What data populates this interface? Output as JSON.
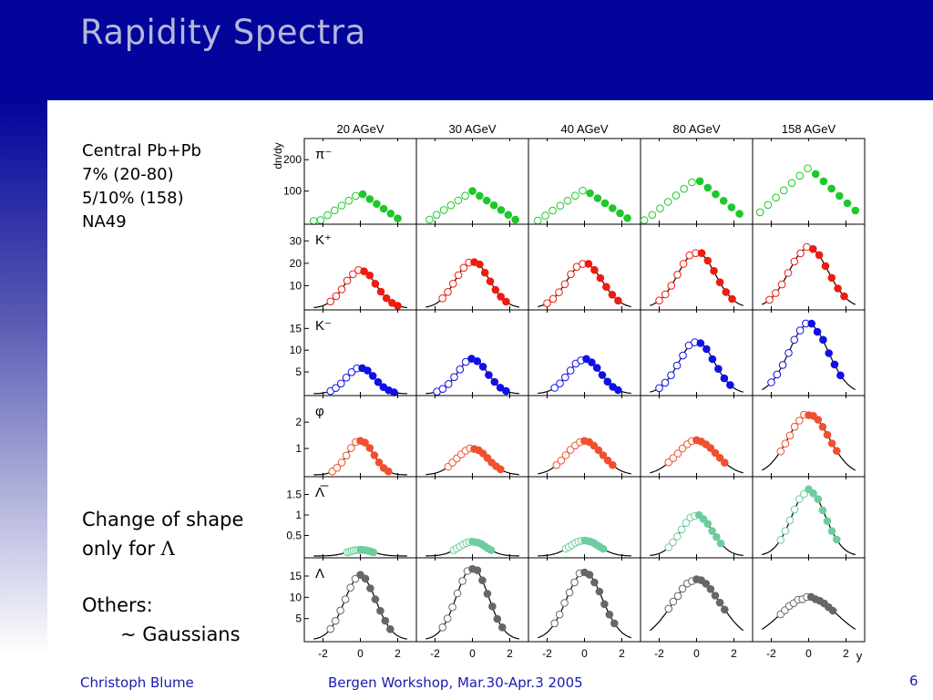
{
  "slide": {
    "title": "Rapidity Spectra",
    "info_lines": [
      "Central Pb+Pb",
      "7% (20-80)",
      "5/10% (158)",
      "",
      "NA49"
    ],
    "shape_line1": "Change of shape",
    "shape_line2_prefix": "only for ",
    "shape_line2_symbol": "Λ",
    "others_line1": "Others:",
    "others_line2": "~ Gaussians",
    "footer_author": "Christoph Blume",
    "footer_event": "Bergen Workshop, Mar.30-Apr.3 2005",
    "page_number": "6",
    "colors": {
      "header": "#03049a",
      "title": "#b4b7dd",
      "footer": "#1a1ab0"
    }
  },
  "chart_data": {
    "type": "scatter",
    "columns": [
      "20 AGeV",
      "30 AGeV",
      "40 AGeV",
      "80 AGeV",
      "158 AGeV"
    ],
    "x_ticks": [
      -2,
      0,
      2
    ],
    "xlim": [
      -3,
      3
    ],
    "xlabel": "y",
    "ylabel": "dn/dy",
    "legend": "none",
    "rows": [
      {
        "particle": "π⁻",
        "color": "#1ec82b",
        "ylim": [
          0,
          250
        ],
        "yticks": [
          100,
          200
        ],
        "fit_curve": false,
        "widths": [
          1.05,
          1.15,
          1.2,
          1.3,
          1.45
        ],
        "peaks": [
          95,
          100,
          105,
          140,
          175
        ],
        "ranges": [
          [
            -2.5,
            2.0
          ],
          [
            -2.3,
            2.3
          ],
          [
            -2.5,
            2.3
          ],
          [
            -2.8,
            2.3
          ],
          [
            -2.6,
            2.5
          ]
        ]
      },
      {
        "particle": "K⁺",
        "color": "#ee1c10",
        "ylim": [
          0,
          35
        ],
        "yticks": [
          10,
          20,
          30
        ],
        "fit_curve": true,
        "widths": [
          0.85,
          0.9,
          0.95,
          1.0,
          1.05
        ],
        "peaks": [
          17,
          21,
          20,
          25,
          27
        ],
        "ranges": [
          [
            -1.6,
            2.0
          ],
          [
            -1.6,
            1.8
          ],
          [
            -2.0,
            1.8
          ],
          [
            -2.0,
            1.9
          ],
          [
            -2.1,
            1.9
          ]
        ]
      },
      {
        "particle": "K⁻",
        "color": "#1010e6",
        "ylim": [
          0,
          18
        ],
        "yticks": [
          5,
          10,
          15
        ],
        "fit_curve": true,
        "widths": [
          0.75,
          0.8,
          0.85,
          0.95,
          1.05
        ],
        "peaks": [
          6,
          8,
          8,
          12,
          16
        ],
        "ranges": [
          [
            -1.6,
            1.8
          ],
          [
            -1.9,
            1.8
          ],
          [
            -1.6,
            1.8
          ],
          [
            -2.0,
            1.8
          ],
          [
            -2.0,
            1.7
          ]
        ]
      },
      {
        "particle": "φ",
        "color": "#f05030",
        "ylim": [
          0,
          2.8
        ],
        "yticks": [
          1,
          2
        ],
        "fit_curve": true,
        "widths": [
          0.7,
          0.85,
          0.95,
          1.05,
          1.1
        ],
        "peaks": [
          1.3,
          1.0,
          1.3,
          1.3,
          2.3
        ],
        "ranges": [
          [
            -1.5,
            1.5
          ],
          [
            -1.3,
            1.5
          ],
          [
            -1.5,
            1.5
          ],
          [
            -1.5,
            1.5
          ],
          [
            -1.5,
            1.5
          ]
        ]
      },
      {
        "particle": "Λ̅",
        "color": "#6fcc9c",
        "ylim": [
          0,
          1.8
        ],
        "yticks": [
          0.5,
          1,
          1.5
        ],
        "fit_curve": true,
        "widths": [
          0.7,
          0.75,
          0.8,
          0.85,
          0.9
        ],
        "peaks": [
          0.15,
          0.35,
          0.38,
          1.0,
          1.6
        ],
        "ranges": [
          [
            -0.7,
            0.7
          ],
          [
            -1.0,
            1.0
          ],
          [
            -1.0,
            1.0
          ],
          [
            -1.5,
            1.3
          ],
          [
            -1.5,
            1.5
          ]
        ]
      },
      {
        "particle": "Λ",
        "color": "#676767",
        "ylim": [
          0,
          18
        ],
        "yticks": [
          5,
          10,
          15
        ],
        "fit_curve": true,
        "widths": [
          0.85,
          0.85,
          0.95,
          1.3,
          1.5
        ],
        "peaks": [
          15,
          17,
          16,
          14,
          10
        ],
        "ranges": [
          [
            -1.6,
            1.6
          ],
          [
            -1.6,
            1.6
          ],
          [
            -1.6,
            1.6
          ],
          [
            -1.5,
            1.5
          ],
          [
            -1.5,
            1.3
          ]
        ]
      }
    ]
  }
}
